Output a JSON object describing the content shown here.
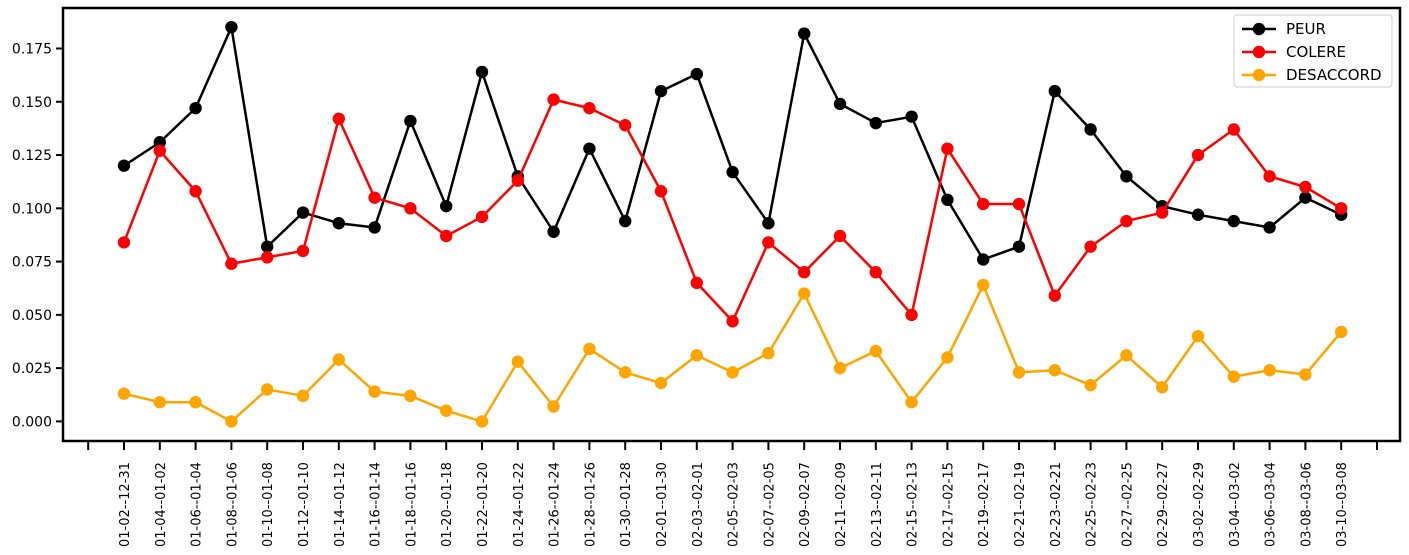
{
  "chart_data": {
    "type": "line",
    "title": "",
    "xlabel": "",
    "ylabel": "",
    "categories": [
      "01-02--12-31",
      "01-04--01-02",
      "01-06--01-04",
      "01-08--01-06",
      "01-10--01-08",
      "01-12--01-10",
      "01-14--01-12",
      "01-16--01-14",
      "01-18--01-16",
      "01-20--01-18",
      "01-22--01-20",
      "01-24--01-22",
      "01-26--01-24",
      "01-28--01-26",
      "01-30--01-28",
      "02-01--01-30",
      "02-03--02-01",
      "02-05--02-03",
      "02-07--02-05",
      "02-09--02-07",
      "02-11--02-09",
      "02-13--02-11",
      "02-15--02-13",
      "02-17--02-15",
      "02-19--02-17",
      "02-21--02-19",
      "02-23--02-21",
      "02-25--02-23",
      "02-27--02-25",
      "02-29--02-27",
      "03-02--02-29",
      "03-04--03-02",
      "03-06--03-04",
      "03-08--03-06",
      "03-10--03-08"
    ],
    "series": [
      {
        "name": "PEUR",
        "color": "#000000",
        "values": [
          0.12,
          0.131,
          0.147,
          0.185,
          0.082,
          0.098,
          0.093,
          0.091,
          0.141,
          0.101,
          0.164,
          0.115,
          0.089,
          0.128,
          0.094,
          0.155,
          0.163,
          0.117,
          0.093,
          0.182,
          0.149,
          0.14,
          0.143,
          0.104,
          0.076,
          0.082,
          0.155,
          0.137,
          0.115,
          0.101,
          0.097,
          0.094,
          0.091,
          0.105,
          0.097
        ]
      },
      {
        "name": "COLERE",
        "color": "#ff0000",
        "values": [
          0.084,
          0.127,
          0.108,
          0.074,
          0.077,
          0.08,
          0.142,
          0.105,
          0.1,
          0.087,
          0.096,
          0.113,
          0.151,
          0.147,
          0.139,
          0.108,
          0.065,
          0.047,
          0.084,
          0.07,
          0.087,
          0.07,
          0.05,
          0.128,
          0.102,
          0.102,
          0.059,
          0.082,
          0.094,
          0.098,
          0.125,
          0.137,
          0.115,
          0.11,
          0.1
        ]
      },
      {
        "name": "DESACCORD",
        "color": "#ffa500",
        "values": [
          0.013,
          0.009,
          0.009,
          0.0,
          0.015,
          0.012,
          0.029,
          0.014,
          0.012,
          0.005,
          0.0,
          0.028,
          0.007,
          0.034,
          0.023,
          0.018,
          0.031,
          0.023,
          0.032,
          0.06,
          0.025,
          0.033,
          0.009,
          0.03,
          0.064,
          0.023,
          0.024,
          0.017,
          0.031,
          0.016,
          0.04,
          0.021,
          0.024,
          0.022,
          0.042
        ]
      }
    ],
    "yticks": [
      "0.000",
      "0.025",
      "0.050",
      "0.075",
      "0.100",
      "0.125",
      "0.150",
      "0.175"
    ],
    "ylim": [
      -0.0092,
      0.194
    ],
    "legend_position": "top-right",
    "grid": false
  }
}
